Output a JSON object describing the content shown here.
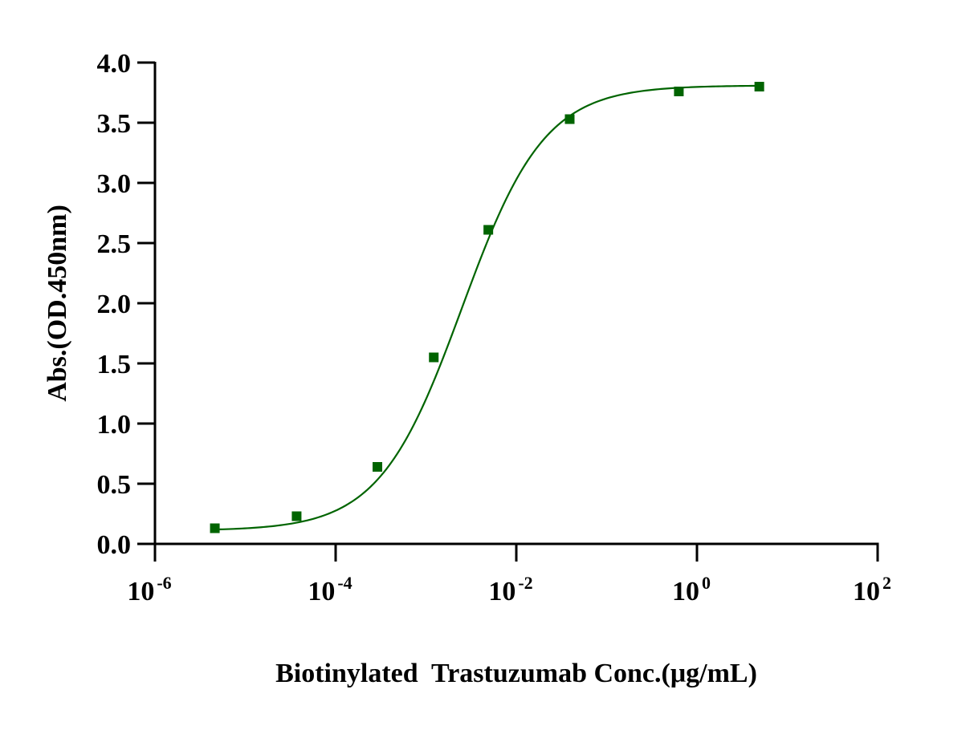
{
  "chart_data": {
    "type": "scatter",
    "title": "",
    "xlabel": "Biotinylated  Trastuzumab Conc.(μg/mL)",
    "ylabel": "Abs.(OD.450nm)",
    "x_scale": "log10",
    "xlim": [
      1e-06,
      100
    ],
    "ylim": [
      0,
      4.0
    ],
    "x_ticks": [
      {
        "base": "10",
        "exp": "-6",
        "value": 1e-06
      },
      {
        "base": "10",
        "exp": "-4",
        "value": 0.0001
      },
      {
        "base": "10",
        "exp": "-2",
        "value": 0.01
      },
      {
        "base": "10",
        "exp": "0",
        "value": 1
      },
      {
        "base": "10",
        "exp": "2",
        "value": 100
      }
    ],
    "y_ticks": [
      "0.0",
      "0.5",
      "1.0",
      "1.5",
      "2.0",
      "2.5",
      "3.0",
      "3.5",
      "4.0"
    ],
    "grid": false,
    "legend": "none",
    "series": [
      {
        "color": "#006400",
        "marker": "square",
        "x": [
          4.6e-06,
          3.7e-05,
          0.00029,
          0.00122,
          0.0049,
          0.039,
          0.63,
          4.9
        ],
        "y": [
          0.13,
          0.23,
          0.64,
          1.55,
          2.61,
          3.53,
          3.76,
          3.8
        ],
        "fit": {
          "model": "4PL",
          "bottom": 0.11,
          "top": 3.81,
          "ec50": 0.0025,
          "hill": 0.95
        }
      }
    ]
  }
}
